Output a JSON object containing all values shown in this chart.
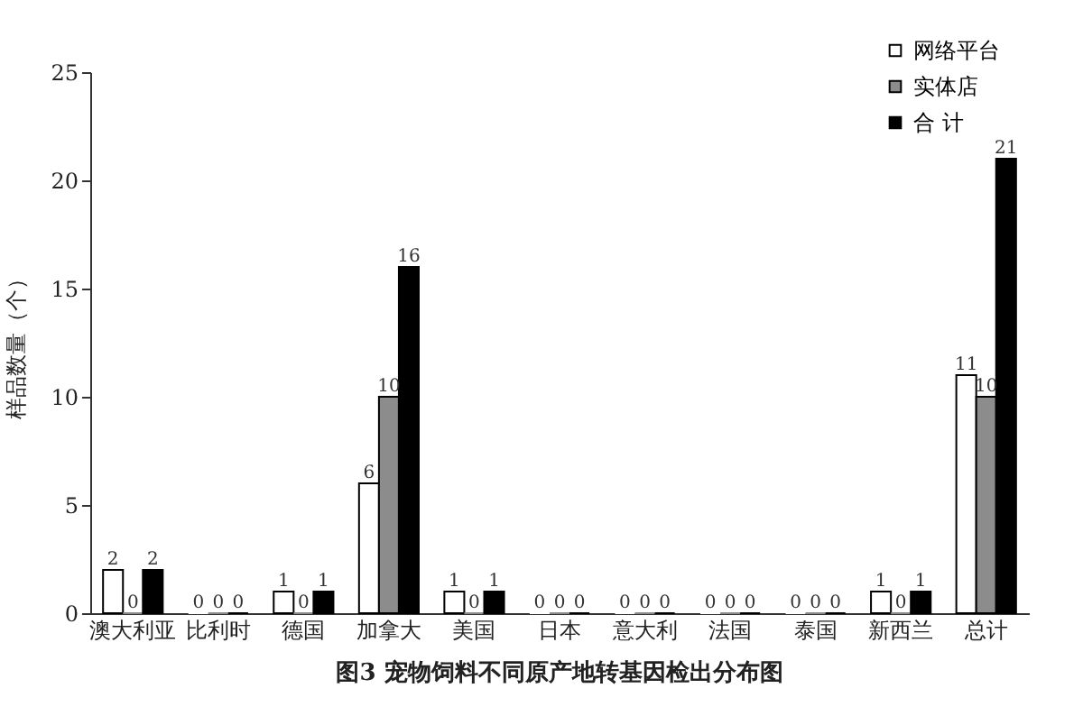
{
  "chart_data": {
    "type": "bar",
    "title": "图3  宠物饲料不同原产地转基因检出分布图",
    "ylabel": "样品数量（个）",
    "categories": [
      "澳大利亚",
      "比利时",
      "德国",
      "加拿大",
      "美国",
      "日本",
      "意大利",
      "法国",
      "泰国",
      "新西兰",
      "总计"
    ],
    "series": [
      {
        "name": "网络平台",
        "color": "#ffffff",
        "values": [
          2,
          0,
          1,
          6,
          1,
          0,
          0,
          0,
          0,
          1,
          11
        ]
      },
      {
        "name": "实体店",
        "color": "#8c8c8c",
        "values": [
          0,
          0,
          0,
          10,
          0,
          0,
          0,
          0,
          0,
          0,
          10
        ]
      },
      {
        "name": "合 计",
        "color": "#000000",
        "values": [
          2,
          0,
          1,
          16,
          1,
          0,
          0,
          0,
          0,
          1,
          21
        ]
      }
    ],
    "ylim": [
      0,
      25
    ],
    "yticks": [
      0,
      5,
      10,
      15,
      20,
      25
    ],
    "grid": false,
    "legend": "top right",
    "data_labels": true
  }
}
